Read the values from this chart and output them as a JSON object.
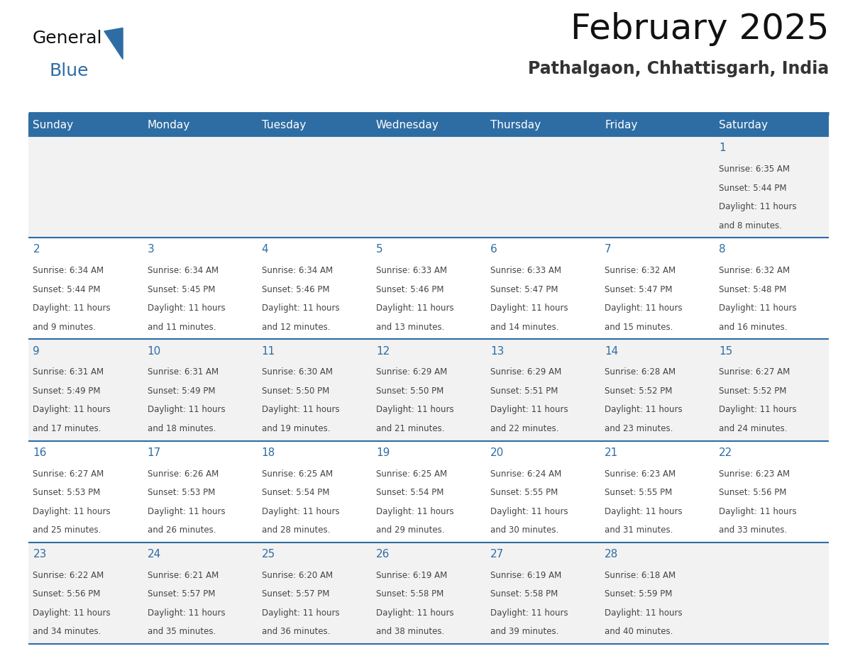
{
  "title": "February 2025",
  "subtitle": "Pathalgaon, Chhattisgarh, India",
  "header_bg": "#2E6DA4",
  "header_text_color": "#FFFFFF",
  "days_of_week": [
    "Sunday",
    "Monday",
    "Tuesday",
    "Wednesday",
    "Thursday",
    "Friday",
    "Saturday"
  ],
  "cell_bg_row0": "#F2F2F2",
  "cell_bg_row1": "#FFFFFF",
  "cell_bg_row2": "#F2F2F2",
  "cell_bg_row3": "#FFFFFF",
  "cell_bg_row4": "#F2F2F2",
  "cell_border_color": "#2E6DA4",
  "day_number_color": "#2E6DA4",
  "cell_text_color": "#444444",
  "logo_general_color": "#111111",
  "logo_blue_color": "#2E6DA4",
  "calendar_data": [
    [
      null,
      null,
      null,
      null,
      null,
      null,
      {
        "day": 1,
        "sunrise": "6:35 AM",
        "sunset": "5:44 PM",
        "daylight": "11 hours",
        "daylight2": "and 8 minutes."
      }
    ],
    [
      {
        "day": 2,
        "sunrise": "6:34 AM",
        "sunset": "5:44 PM",
        "daylight": "11 hours",
        "daylight2": "and 9 minutes."
      },
      {
        "day": 3,
        "sunrise": "6:34 AM",
        "sunset": "5:45 PM",
        "daylight": "11 hours",
        "daylight2": "and 11 minutes."
      },
      {
        "day": 4,
        "sunrise": "6:34 AM",
        "sunset": "5:46 PM",
        "daylight": "11 hours",
        "daylight2": "and 12 minutes."
      },
      {
        "day": 5,
        "sunrise": "6:33 AM",
        "sunset": "5:46 PM",
        "daylight": "11 hours",
        "daylight2": "and 13 minutes."
      },
      {
        "day": 6,
        "sunrise": "6:33 AM",
        "sunset": "5:47 PM",
        "daylight": "11 hours",
        "daylight2": "and 14 minutes."
      },
      {
        "day": 7,
        "sunrise": "6:32 AM",
        "sunset": "5:47 PM",
        "daylight": "11 hours",
        "daylight2": "and 15 minutes."
      },
      {
        "day": 8,
        "sunrise": "6:32 AM",
        "sunset": "5:48 PM",
        "daylight": "11 hours",
        "daylight2": "and 16 minutes."
      }
    ],
    [
      {
        "day": 9,
        "sunrise": "6:31 AM",
        "sunset": "5:49 PM",
        "daylight": "11 hours",
        "daylight2": "and 17 minutes."
      },
      {
        "day": 10,
        "sunrise": "6:31 AM",
        "sunset": "5:49 PM",
        "daylight": "11 hours",
        "daylight2": "and 18 minutes."
      },
      {
        "day": 11,
        "sunrise": "6:30 AM",
        "sunset": "5:50 PM",
        "daylight": "11 hours",
        "daylight2": "and 19 minutes."
      },
      {
        "day": 12,
        "sunrise": "6:29 AM",
        "sunset": "5:50 PM",
        "daylight": "11 hours",
        "daylight2": "and 21 minutes."
      },
      {
        "day": 13,
        "sunrise": "6:29 AM",
        "sunset": "5:51 PM",
        "daylight": "11 hours",
        "daylight2": "and 22 minutes."
      },
      {
        "day": 14,
        "sunrise": "6:28 AM",
        "sunset": "5:52 PM",
        "daylight": "11 hours",
        "daylight2": "and 23 minutes."
      },
      {
        "day": 15,
        "sunrise": "6:27 AM",
        "sunset": "5:52 PM",
        "daylight": "11 hours",
        "daylight2": "and 24 minutes."
      }
    ],
    [
      {
        "day": 16,
        "sunrise": "6:27 AM",
        "sunset": "5:53 PM",
        "daylight": "11 hours",
        "daylight2": "and 25 minutes."
      },
      {
        "day": 17,
        "sunrise": "6:26 AM",
        "sunset": "5:53 PM",
        "daylight": "11 hours",
        "daylight2": "and 26 minutes."
      },
      {
        "day": 18,
        "sunrise": "6:25 AM",
        "sunset": "5:54 PM",
        "daylight": "11 hours",
        "daylight2": "and 28 minutes."
      },
      {
        "day": 19,
        "sunrise": "6:25 AM",
        "sunset": "5:54 PM",
        "daylight": "11 hours",
        "daylight2": "and 29 minutes."
      },
      {
        "day": 20,
        "sunrise": "6:24 AM",
        "sunset": "5:55 PM",
        "daylight": "11 hours",
        "daylight2": "and 30 minutes."
      },
      {
        "day": 21,
        "sunrise": "6:23 AM",
        "sunset": "5:55 PM",
        "daylight": "11 hours",
        "daylight2": "and 31 minutes."
      },
      {
        "day": 22,
        "sunrise": "6:23 AM",
        "sunset": "5:56 PM",
        "daylight": "11 hours",
        "daylight2": "and 33 minutes."
      }
    ],
    [
      {
        "day": 23,
        "sunrise": "6:22 AM",
        "sunset": "5:56 PM",
        "daylight": "11 hours",
        "daylight2": "and 34 minutes."
      },
      {
        "day": 24,
        "sunrise": "6:21 AM",
        "sunset": "5:57 PM",
        "daylight": "11 hours",
        "daylight2": "and 35 minutes."
      },
      {
        "day": 25,
        "sunrise": "6:20 AM",
        "sunset": "5:57 PM",
        "daylight": "11 hours",
        "daylight2": "and 36 minutes."
      },
      {
        "day": 26,
        "sunrise": "6:19 AM",
        "sunset": "5:58 PM",
        "daylight": "11 hours",
        "daylight2": "and 38 minutes."
      },
      {
        "day": 27,
        "sunrise": "6:19 AM",
        "sunset": "5:58 PM",
        "daylight": "11 hours",
        "daylight2": "and 39 minutes."
      },
      {
        "day": 28,
        "sunrise": "6:18 AM",
        "sunset": "5:59 PM",
        "daylight": "11 hours",
        "daylight2": "and 40 minutes."
      },
      null
    ]
  ],
  "num_rows": 5,
  "num_cols": 7,
  "fig_width": 11.88,
  "fig_height": 9.18
}
